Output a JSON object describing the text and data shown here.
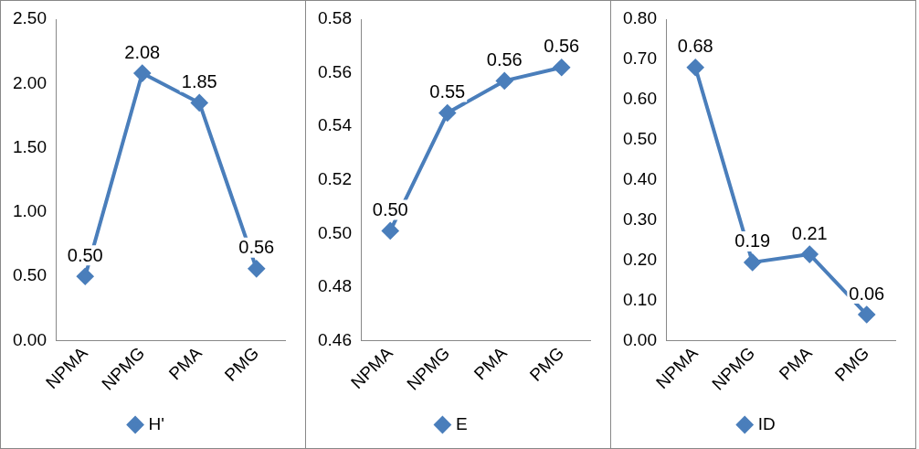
{
  "chart_data": [
    {
      "type": "line",
      "categories": [
        "NPMA",
        "NPMG",
        "PMA",
        "PMG"
      ],
      "series": [
        {
          "name": "H'",
          "color": "#4a7ebb",
          "values": [
            0.5,
            2.08,
            1.85,
            0.56
          ],
          "value_labels": [
            "0.50",
            "2.08",
            "1.85",
            "0.56"
          ]
        }
      ],
      "ylim": [
        0,
        2.5
      ],
      "yticks": [
        {
          "value": 0,
          "label": "0.00"
        },
        {
          "value": 0.5,
          "label": "0.50"
        },
        {
          "value": 1,
          "label": "1.00"
        },
        {
          "value": 1.5,
          "label": "1.50"
        },
        {
          "value": 2,
          "label": "2.00"
        },
        {
          "value": 2.5,
          "label": "2.50"
        }
      ],
      "grid": false,
      "legend": "bottom",
      "marker": "diamond",
      "line_style": "solid"
    },
    {
      "type": "line",
      "categories": [
        "NPMA",
        "NPMG",
        "PMA",
        "PMG"
      ],
      "series": [
        {
          "name": "E",
          "color": "#4a7ebb",
          "values": [
            0.501,
            0.545,
            0.557,
            0.562
          ],
          "value_labels": [
            "0.50",
            "0.55",
            "0.56",
            "0.56"
          ]
        }
      ],
      "ylim": [
        0.46,
        0.58
      ],
      "yticks": [
        {
          "value": 0.46,
          "label": "0.46"
        },
        {
          "value": 0.48,
          "label": "0.48"
        },
        {
          "value": 0.5,
          "label": "0.50"
        },
        {
          "value": 0.52,
          "label": "0.52"
        },
        {
          "value": 0.54,
          "label": "0.54"
        },
        {
          "value": 0.56,
          "label": "0.56"
        },
        {
          "value": 0.58,
          "label": "0.58"
        }
      ],
      "grid": false,
      "legend": "bottom",
      "marker": "diamond",
      "line_style": "solid"
    },
    {
      "type": "line",
      "categories": [
        "NPMA",
        "NPMG",
        "PMA",
        "PMG"
      ],
      "series": [
        {
          "name": "ID",
          "color": "#4a7ebb",
          "values": [
            0.68,
            0.195,
            0.215,
            0.065
          ],
          "value_labels": [
            "0.68",
            "0.19",
            "0.21",
            "0.06"
          ]
        }
      ],
      "ylim": [
        0,
        0.8
      ],
      "yticks": [
        {
          "value": 0,
          "label": "0.00"
        },
        {
          "value": 0.1,
          "label": "0.10"
        },
        {
          "value": 0.2,
          "label": "0.20"
        },
        {
          "value": 0.3,
          "label": "0.30"
        },
        {
          "value": 0.4,
          "label": "0.40"
        },
        {
          "value": 0.5,
          "label": "0.50"
        },
        {
          "value": 0.6,
          "label": "0.60"
        },
        {
          "value": 0.7,
          "label": "0.70"
        },
        {
          "value": 0.8,
          "label": "0.80"
        }
      ],
      "grid": false,
      "legend": "bottom",
      "marker": "diamond",
      "line_style": "solid"
    }
  ]
}
